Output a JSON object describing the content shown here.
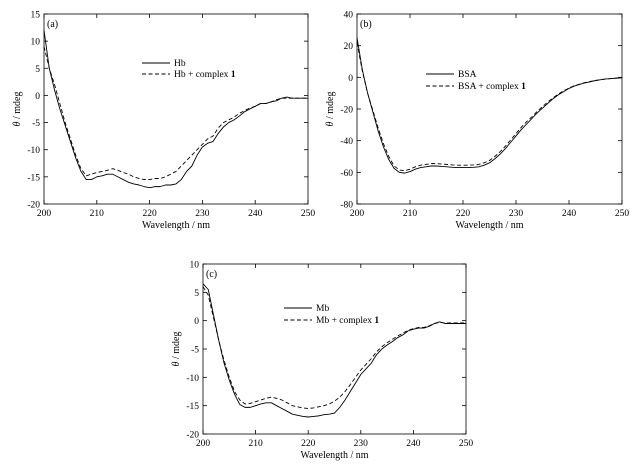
{
  "chart_data": [
    {
      "type": "line",
      "panel_label": "(a)",
      "xlabel": "Wavelength / nm",
      "ylabel_symbol": "θ",
      "ylabel_rest": " / mdeg",
      "xlim": [
        200,
        250
      ],
      "ylim": [
        -20,
        15
      ],
      "xticks": [
        200,
        210,
        220,
        230,
        240,
        250
      ],
      "yticks": [
        15,
        10,
        5,
        0,
        -5,
        -10,
        -15,
        -20
      ],
      "legend_position": "top-center",
      "series": [
        {
          "name": "Hb",
          "name_suffix": "",
          "style": "solid",
          "x": [
            200,
            201,
            202,
            203,
            204,
            205,
            206,
            207,
            208,
            209,
            210,
            211,
            212,
            213,
            214,
            215,
            216,
            217,
            218,
            219,
            220,
            221,
            222,
            223,
            224,
            225,
            226,
            227,
            228,
            229,
            230,
            231,
            232,
            233,
            234,
            235,
            236,
            237,
            238,
            239,
            240,
            241,
            242,
            243,
            244,
            245,
            246,
            247,
            248,
            249,
            250
          ],
          "y": [
            12,
            5,
            1,
            -2.5,
            -5.5,
            -8.5,
            -11.5,
            -14,
            -15.5,
            -15.5,
            -15,
            -14.8,
            -14.5,
            -14.5,
            -15,
            -15.5,
            -16,
            -16.3,
            -16.5,
            -16.8,
            -17,
            -16.8,
            -16.8,
            -16.5,
            -16.5,
            -16.3,
            -15.5,
            -14,
            -13,
            -11,
            -9.5,
            -8.8,
            -8.5,
            -7,
            -5.8,
            -5,
            -4.5,
            -3.8,
            -3,
            -2.5,
            -2,
            -1.5,
            -1.5,
            -1.2,
            -1,
            -0.5,
            -0.3,
            -0.5,
            -0.5,
            -0.5,
            -0.5
          ]
        },
        {
          "name": "Hb + complex ",
          "name_suffix": "1",
          "style": "dashed",
          "x": [
            200,
            201,
            202,
            203,
            204,
            205,
            206,
            207,
            208,
            209,
            210,
            211,
            212,
            213,
            214,
            215,
            216,
            217,
            218,
            219,
            220,
            221,
            222,
            223,
            224,
            225,
            226,
            227,
            228,
            229,
            230,
            231,
            232,
            233,
            234,
            235,
            236,
            237,
            238,
            239,
            240,
            241,
            242,
            243,
            244,
            245,
            246,
            247,
            248,
            249,
            250
          ],
          "y": [
            9,
            5,
            2,
            -1.5,
            -5,
            -8,
            -11,
            -13.5,
            -14.8,
            -14.5,
            -14.2,
            -14,
            -13.8,
            -13.5,
            -13.8,
            -14.2,
            -14.5,
            -15,
            -15.3,
            -15.5,
            -15.5,
            -15.3,
            -15.3,
            -15,
            -14.5,
            -14,
            -13,
            -12,
            -11,
            -10,
            -9,
            -8,
            -7.5,
            -6,
            -5,
            -4.5,
            -4,
            -3.3,
            -2.8,
            -2.3,
            -2,
            -1.5,
            -1.5,
            -1.2,
            -0.8,
            -0.5,
            -0.5,
            -0.5,
            -0.5,
            -0.5,
            -0.5
          ]
        }
      ]
    },
    {
      "type": "line",
      "panel_label": "(b)",
      "xlabel": "Wavelength / nm",
      "ylabel_symbol": "θ",
      "ylabel_rest": " / mdeg",
      "xlim": [
        200,
        250
      ],
      "ylim": [
        -80,
        40
      ],
      "xticks": [
        200,
        210,
        220,
        230,
        240,
        250
      ],
      "yticks": [
        40,
        20,
        0,
        -20,
        -40,
        -60,
        -80
      ],
      "legend_position": "center-right",
      "series": [
        {
          "name": "BSA",
          "name_suffix": "",
          "style": "solid",
          "x": [
            200,
            201,
            202,
            203,
            204,
            205,
            206,
            207,
            208,
            209,
            210,
            211,
            212,
            213,
            214,
            215,
            216,
            217,
            218,
            219,
            220,
            221,
            222,
            223,
            224,
            225,
            226,
            227,
            228,
            229,
            230,
            231,
            232,
            233,
            234,
            235,
            236,
            237,
            238,
            239,
            240,
            241,
            242,
            243,
            244,
            245,
            246,
            247,
            248,
            249,
            250
          ],
          "y": [
            25,
            5,
            -10,
            -22,
            -34,
            -44,
            -52,
            -57.5,
            -60,
            -60.5,
            -59.5,
            -58,
            -57,
            -56.5,
            -56,
            -56,
            -56.3,
            -56.5,
            -56.8,
            -57,
            -57,
            -57,
            -56.8,
            -56.5,
            -55.5,
            -54,
            -51.5,
            -48.5,
            -45,
            -41,
            -37,
            -33,
            -29.5,
            -26,
            -22.5,
            -19.5,
            -16.5,
            -13.5,
            -11,
            -9,
            -7,
            -5.5,
            -4.5,
            -3.5,
            -2.8,
            -2,
            -1.5,
            -1,
            -0.8,
            -0.5,
            -0.3
          ]
        },
        {
          "name": "BSA + complex ",
          "name_suffix": "1",
          "style": "dashed",
          "x": [
            200,
            201,
            202,
            203,
            204,
            205,
            206,
            207,
            208,
            209,
            210,
            211,
            212,
            213,
            214,
            215,
            216,
            217,
            218,
            219,
            220,
            221,
            222,
            223,
            224,
            225,
            226,
            227,
            228,
            229,
            230,
            231,
            232,
            233,
            234,
            235,
            236,
            237,
            238,
            239,
            240,
            241,
            242,
            243,
            244,
            245,
            246,
            247,
            248,
            249,
            250
          ],
          "y": [
            22,
            4,
            -10,
            -21,
            -32,
            -42,
            -50,
            -56,
            -58.5,
            -59,
            -58,
            -56.5,
            -55.5,
            -55,
            -54.5,
            -54.5,
            -54.8,
            -55,
            -55.3,
            -55.5,
            -55.5,
            -55.5,
            -55.3,
            -55,
            -54,
            -52.5,
            -50,
            -47,
            -43.5,
            -39.5,
            -35.5,
            -31.5,
            -28,
            -25,
            -21.5,
            -18.5,
            -15.5,
            -13,
            -10.5,
            -8.5,
            -6.8,
            -5.3,
            -4.3,
            -3.3,
            -2.6,
            -2,
            -1.5,
            -1,
            -0.8,
            -0.5,
            -0.3
          ]
        }
      ]
    },
    {
      "type": "line",
      "panel_label": "(c)",
      "xlabel": "Wavelength / nm",
      "ylabel_symbol": "θ",
      "ylabel_rest": " / mdeg",
      "xlim": [
        200,
        250
      ],
      "ylim": [
        -20,
        10
      ],
      "xticks": [
        200,
        210,
        220,
        230,
        240,
        250
      ],
      "yticks": [
        10,
        5,
        0,
        -5,
        -10,
        -15,
        -20
      ],
      "legend_position": "center-right",
      "series": [
        {
          "name": "Mb",
          "name_suffix": "",
          "style": "solid",
          "x": [
            200,
            201,
            202,
            203,
            204,
            205,
            206,
            207,
            208,
            209,
            210,
            211,
            212,
            213,
            214,
            215,
            216,
            217,
            218,
            219,
            220,
            221,
            222,
            223,
            224,
            225,
            226,
            227,
            228,
            229,
            230,
            231,
            232,
            233,
            234,
            235,
            236,
            237,
            238,
            239,
            240,
            241,
            242,
            243,
            244,
            245,
            246,
            247,
            248,
            249,
            250
          ],
          "y": [
            6.5,
            5.5,
            1,
            -3.5,
            -7.5,
            -10.5,
            -13,
            -14.8,
            -15.3,
            -15.3,
            -15,
            -14.7,
            -14.5,
            -14.5,
            -15,
            -15.5,
            -16,
            -16.5,
            -16.7,
            -16.9,
            -17,
            -16.9,
            -16.8,
            -16.6,
            -16.5,
            -16.3,
            -15.3,
            -14,
            -12.5,
            -11,
            -9.5,
            -8.5,
            -7.5,
            -6,
            -5,
            -4.3,
            -3.7,
            -3,
            -2.5,
            -1.8,
            -1.5,
            -1.3,
            -1.3,
            -1,
            -0.5,
            -0.2,
            -0.5,
            -0.5,
            -0.5,
            -0.5,
            -0.5
          ]
        },
        {
          "name": "Mb + complex ",
          "name_suffix": "1",
          "style": "dashed",
          "x": [
            200,
            201,
            202,
            203,
            204,
            205,
            206,
            207,
            208,
            209,
            210,
            211,
            212,
            213,
            214,
            215,
            216,
            217,
            218,
            219,
            220,
            221,
            222,
            223,
            224,
            225,
            226,
            227,
            228,
            229,
            230,
            231,
            232,
            233,
            234,
            235,
            236,
            237,
            238,
            239,
            240,
            241,
            242,
            243,
            244,
            245,
            246,
            247,
            248,
            249,
            250
          ],
          "y": [
            6,
            4.5,
            0.5,
            -3.5,
            -7,
            -10,
            -12.5,
            -14,
            -14.7,
            -14.6,
            -14.3,
            -14,
            -13.7,
            -13.5,
            -13.7,
            -14,
            -14.5,
            -15,
            -15.2,
            -15.4,
            -15.5,
            -15.4,
            -15.2,
            -15,
            -14.7,
            -14.2,
            -13.5,
            -12.5,
            -11.3,
            -10,
            -8.7,
            -7.7,
            -6.7,
            -5.5,
            -4.6,
            -3.9,
            -3.3,
            -2.7,
            -2.2,
            -1.7,
            -1.4,
            -1.2,
            -1.2,
            -0.9,
            -0.5,
            -0.3,
            -0.4,
            -0.4,
            -0.4,
            -0.4,
            -0.4
          ]
        }
      ]
    }
  ]
}
